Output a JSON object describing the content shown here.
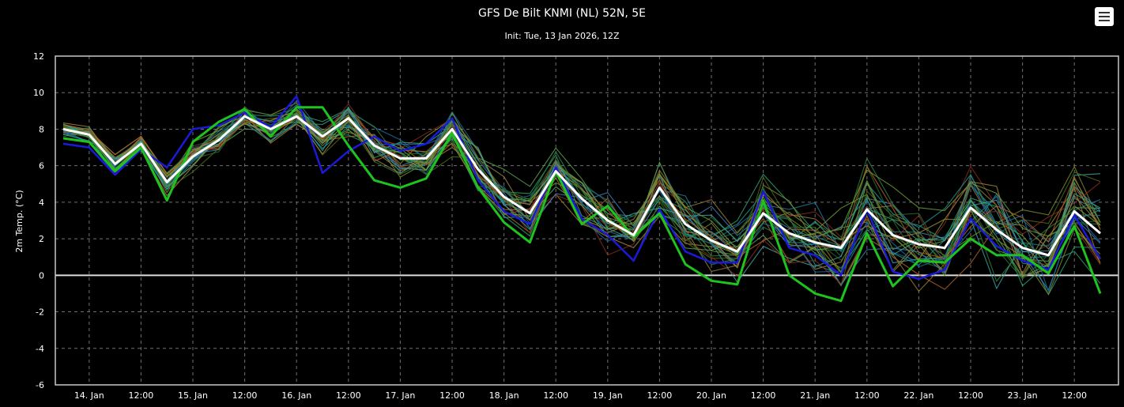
{
  "chart_data": {
    "type": "line",
    "title": "GFS De Bilt KNMI (NL) 52N, 5E",
    "subtitle": "Init: Tue, 13 Jan 2026, 12Z",
    "ylabel": "2m Temp. (°C)",
    "xlabel": "",
    "ylim": [
      -6,
      12
    ],
    "yticks": [
      -6,
      -4,
      -2,
      0,
      2,
      4,
      6,
      8,
      10,
      12
    ],
    "grid": true,
    "x_start": "13 Jan 2026 18:00",
    "x_step_hours": 6,
    "xticks": [
      {
        "label": "14. Jan",
        "step": 1
      },
      {
        "label": "12:00",
        "step": 3
      },
      {
        "label": "15. Jan",
        "step": 5
      },
      {
        "label": "12:00",
        "step": 7
      },
      {
        "label": "16. Jan",
        "step": 9
      },
      {
        "label": "12:00",
        "step": 11
      },
      {
        "label": "17. Jan",
        "step": 13
      },
      {
        "label": "12:00",
        "step": 15
      },
      {
        "label": "18. Jan",
        "step": 17
      },
      {
        "label": "12:00",
        "step": 19
      },
      {
        "label": "19. Jan",
        "step": 21
      },
      {
        "label": "12:00",
        "step": 23
      },
      {
        "label": "20. Jan",
        "step": 25
      },
      {
        "label": "12:00",
        "step": 27
      },
      {
        "label": "21. Jan",
        "step": 29
      },
      {
        "label": "12:00",
        "step": 31
      },
      {
        "label": "22. Jan",
        "step": 33
      },
      {
        "label": "12:00",
        "step": 35
      },
      {
        "label": "23. Jan",
        "step": 37
      },
      {
        "label": "12:00",
        "step": 39
      }
    ],
    "series": [
      {
        "role": "mean",
        "color": "#ffffff",
        "width": 3,
        "values": [
          8.0,
          7.7,
          6.1,
          7.2,
          5.1,
          6.5,
          7.4,
          8.7,
          8.0,
          8.7,
          7.6,
          8.6,
          7.1,
          6.4,
          6.4,
          8.0,
          5.8,
          4.3,
          3.4,
          5.7,
          4.2,
          3.0,
          2.2,
          4.8,
          2.8,
          1.9,
          1.3,
          3.4,
          2.3,
          1.8,
          1.5,
          3.6,
          2.2,
          1.7,
          1.5,
          3.7,
          2.5,
          1.5,
          1.1,
          3.5,
          2.3
        ]
      },
      {
        "role": "control",
        "color": "#1ec31e",
        "width": 3,
        "values": [
          7.5,
          7.3,
          5.7,
          7.0,
          4.1,
          7.3,
          8.4,
          9.1,
          7.6,
          9.2,
          9.2,
          7.1,
          5.2,
          4.8,
          5.3,
          7.8,
          4.8,
          2.9,
          1.8,
          5.7,
          2.8,
          3.8,
          2.1,
          3.4,
          0.6,
          -0.3,
          -0.5,
          4.1,
          0.0,
          -1.0,
          -1.4,
          2.3,
          -0.6,
          0.8,
          0.7,
          2.0,
          1.1,
          1.1,
          0.1,
          2.7,
          -1.0
        ]
      },
      {
        "role": "member",
        "color": "#1a1ad8",
        "width": 2.5,
        "values": [
          7.2,
          7.0,
          5.5,
          6.9,
          5.9,
          8.0,
          8.2,
          8.9,
          8.1,
          9.8,
          5.6,
          6.8,
          7.6,
          6.8,
          7.2,
          8.6,
          5.2,
          3.5,
          2.8,
          5.9,
          3.1,
          2.2,
          0.8,
          3.6,
          1.3,
          0.7,
          0.7,
          4.6,
          1.5,
          1.1,
          0.0,
          3.6,
          0.2,
          -0.2,
          0.3,
          3.1,
          1.6,
          0.8,
          0.3,
          3.3,
          0.9
        ]
      }
    ]
  }
}
